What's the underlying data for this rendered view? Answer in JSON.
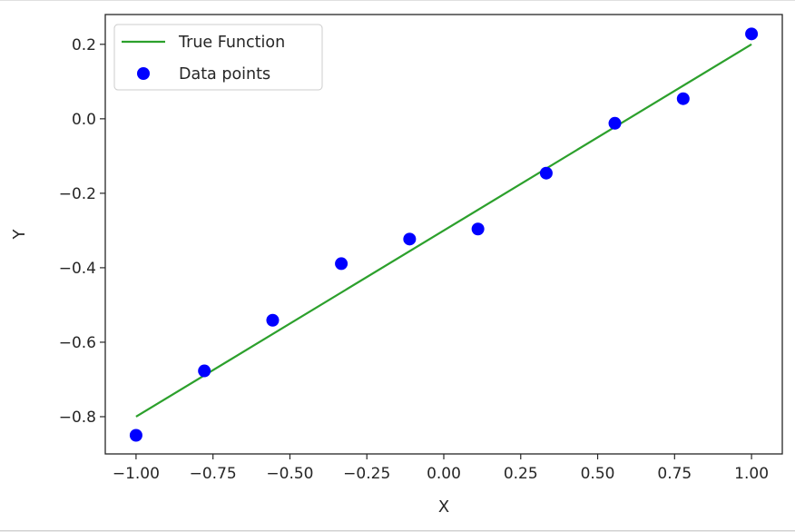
{
  "chart_data": {
    "type": "scatter",
    "title": "",
    "xlabel": "X",
    "ylabel": "Y",
    "xlim": [
      -1.1,
      1.1
    ],
    "ylim": [
      -0.9,
      0.28
    ],
    "xticks": [
      -1.0,
      -0.75,
      -0.5,
      -0.25,
      0.0,
      0.25,
      0.5,
      0.75,
      1.0
    ],
    "xtick_labels": [
      "−1.00",
      "−0.75",
      "−0.50",
      "−0.25",
      "0.00",
      "0.25",
      "0.50",
      "0.75",
      "1.00"
    ],
    "yticks": [
      -0.8,
      -0.6,
      -0.4,
      -0.2,
      0.0,
      0.2
    ],
    "ytick_labels": [
      "−0.8",
      "−0.6",
      "−0.4",
      "−0.2",
      "0.0",
      "0.2"
    ],
    "grid": false,
    "legend_placement": "top-left",
    "series": [
      {
        "name": "True Function",
        "kind": "line",
        "color": "#2ca02c",
        "x": [
          -1.0,
          1.0
        ],
        "y": [
          -0.8,
          0.2
        ]
      },
      {
        "name": "Data points",
        "kind": "scatter",
        "color": "#0000ff",
        "x": [
          -1.0,
          -0.778,
          -0.556,
          -0.333,
          -0.111,
          0.111,
          0.333,
          0.556,
          0.778,
          1.0
        ],
        "y": [
          -0.85,
          -0.677,
          -0.541,
          -0.389,
          -0.323,
          -0.296,
          -0.146,
          -0.012,
          0.054,
          0.228
        ]
      }
    ]
  }
}
